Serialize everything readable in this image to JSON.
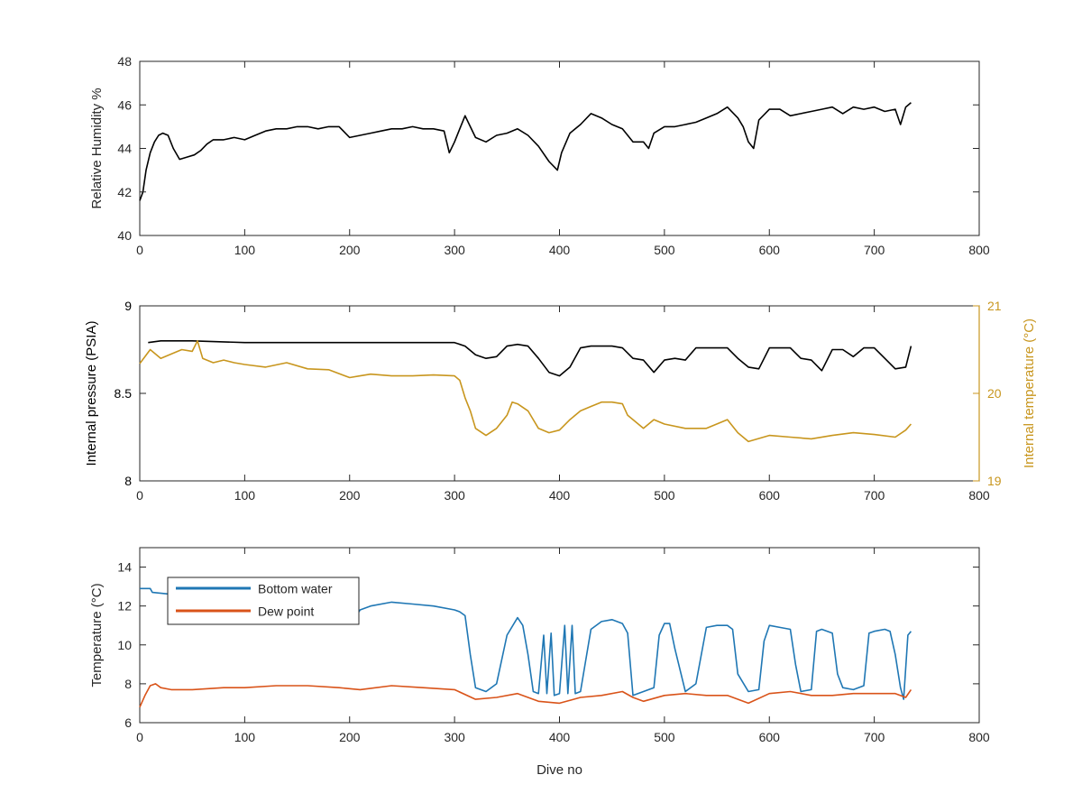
{
  "chart_data": [
    {
      "type": "line",
      "ylabel": "Relative Humidity %",
      "xlim": [
        0,
        800
      ],
      "ylim": [
        40,
        48
      ],
      "xticks": [
        0,
        100,
        200,
        300,
        400,
        500,
        600,
        700,
        800
      ],
      "yticks": [
        40,
        42,
        44,
        46,
        48
      ],
      "grid": false,
      "series": [
        {
          "color": "#000000",
          "x": [
            0,
            3,
            6,
            10,
            14,
            18,
            22,
            27,
            32,
            38,
            45,
            52,
            58,
            64,
            70,
            80,
            90,
            100,
            110,
            120,
            130,
            140,
            150,
            160,
            170,
            180,
            190,
            200,
            210,
            220,
            230,
            240,
            250,
            260,
            270,
            280,
            290,
            295,
            300,
            305,
            310,
            315,
            320,
            330,
            340,
            350,
            360,
            370,
            380,
            390,
            398,
            402,
            410,
            420,
            430,
            440,
            450,
            460,
            470,
            480,
            485,
            490,
            500,
            510,
            520,
            530,
            540,
            550,
            560,
            570,
            575,
            580,
            585,
            590,
            600,
            610,
            620,
            630,
            640,
            650,
            660,
            670,
            680,
            690,
            700,
            710,
            720,
            725,
            730,
            735
          ],
          "y": [
            41.6,
            42.0,
            43.0,
            43.8,
            44.3,
            44.6,
            44.7,
            44.6,
            44.0,
            43.5,
            43.6,
            43.7,
            43.9,
            44.2,
            44.4,
            44.4,
            44.5,
            44.4,
            44.6,
            44.8,
            44.9,
            44.9,
            45.0,
            45.0,
            44.9,
            45.0,
            45.0,
            44.5,
            44.6,
            44.7,
            44.8,
            44.9,
            44.9,
            45.0,
            44.9,
            44.9,
            44.8,
            43.8,
            44.3,
            44.9,
            45.5,
            45.0,
            44.5,
            44.3,
            44.6,
            44.7,
            44.9,
            44.6,
            44.1,
            43.4,
            43.0,
            43.8,
            44.7,
            45.1,
            45.6,
            45.4,
            45.1,
            44.9,
            44.3,
            44.3,
            44.0,
            44.7,
            45.0,
            45.0,
            45.1,
            45.2,
            45.4,
            45.6,
            45.9,
            45.4,
            45.0,
            44.3,
            44.0,
            45.3,
            45.8,
            45.8,
            45.5,
            45.6,
            45.7,
            45.8,
            45.9,
            45.6,
            45.9,
            45.8,
            45.9,
            45.7,
            45.8,
            45.1,
            45.9,
            46.1
          ]
        }
      ]
    },
    {
      "type": "line",
      "ylabel": "Internal pressure (PSIA)",
      "y2label": "Internal temperature (°C)",
      "xlim": [
        0,
        800
      ],
      "ylim": [
        8,
        9
      ],
      "y2lim": [
        19,
        21
      ],
      "xticks": [
        0,
        100,
        200,
        300,
        400,
        500,
        600,
        700,
        800
      ],
      "yticks": [
        8,
        8.5,
        9
      ],
      "y2ticks": [
        19,
        20,
        21
      ],
      "y2color": "#c8961e",
      "grid": false,
      "series": [
        {
          "axis": "left",
          "color": "#000000",
          "x": [
            8,
            20,
            50,
            100,
            150,
            200,
            250,
            300,
            310,
            320,
            330,
            340,
            350,
            360,
            370,
            380,
            390,
            400,
            410,
            420,
            430,
            440,
            450,
            460,
            470,
            480,
            490,
            500,
            510,
            520,
            530,
            540,
            550,
            560,
            570,
            580,
            590,
            600,
            610,
            620,
            630,
            640,
            650,
            660,
            670,
            680,
            690,
            700,
            710,
            720,
            730,
            735
          ],
          "y": [
            8.79,
            8.8,
            8.8,
            8.79,
            8.79,
            8.79,
            8.79,
            8.79,
            8.77,
            8.72,
            8.7,
            8.71,
            8.77,
            8.78,
            8.77,
            8.7,
            8.62,
            8.6,
            8.65,
            8.76,
            8.77,
            8.77,
            8.77,
            8.76,
            8.7,
            8.69,
            8.62,
            8.69,
            8.7,
            8.69,
            8.76,
            8.76,
            8.76,
            8.76,
            8.7,
            8.65,
            8.64,
            8.76,
            8.76,
            8.76,
            8.7,
            8.69,
            8.63,
            8.75,
            8.75,
            8.71,
            8.76,
            8.76,
            8.7,
            8.64,
            8.65,
            8.77
          ]
        },
        {
          "axis": "right",
          "color": "#c8961e",
          "x": [
            0,
            10,
            20,
            30,
            40,
            50,
            55,
            60,
            70,
            80,
            90,
            100,
            120,
            140,
            160,
            180,
            200,
            210,
            220,
            240,
            260,
            280,
            300,
            305,
            310,
            315,
            320,
            330,
            340,
            350,
            355,
            360,
            370,
            380,
            390,
            400,
            410,
            420,
            430,
            440,
            450,
            460,
            465,
            470,
            480,
            490,
            500,
            520,
            540,
            560,
            570,
            580,
            600,
            620,
            640,
            660,
            680,
            700,
            720,
            730,
            735
          ],
          "y": [
            20.34,
            20.5,
            20.4,
            20.45,
            20.5,
            20.48,
            20.6,
            20.4,
            20.35,
            20.38,
            20.35,
            20.33,
            20.3,
            20.35,
            20.28,
            20.27,
            20.18,
            20.2,
            20.22,
            20.2,
            20.2,
            20.21,
            20.2,
            20.15,
            19.95,
            19.8,
            19.6,
            19.52,
            19.6,
            19.75,
            19.9,
            19.88,
            19.8,
            19.6,
            19.55,
            19.58,
            19.7,
            19.8,
            19.85,
            19.9,
            19.9,
            19.88,
            19.75,
            19.7,
            19.6,
            19.7,
            19.65,
            19.6,
            19.6,
            19.7,
            19.55,
            19.45,
            19.52,
            19.5,
            19.48,
            19.52,
            19.55,
            19.53,
            19.5,
            19.58,
            19.65
          ]
        }
      ]
    },
    {
      "type": "line",
      "xlabel": "Dive no",
      "ylabel": "Temperature (°C)",
      "xlim": [
        0,
        800
      ],
      "ylim": [
        6,
        15
      ],
      "xticks": [
        0,
        100,
        200,
        300,
        400,
        500,
        600,
        700,
        800
      ],
      "yticks": [
        6,
        8,
        10,
        12,
        14
      ],
      "legend_position": "top-left",
      "grid": false,
      "series": [
        {
          "name": "Bottom water",
          "color": "#1f77b4",
          "x": [
            0,
            10,
            12,
            30,
            60,
            100,
            150,
            200,
            205,
            210,
            220,
            240,
            260,
            280,
            300,
            305,
            310,
            315,
            320,
            330,
            340,
            350,
            360,
            365,
            370,
            375,
            380,
            385,
            388,
            392,
            395,
            400,
            405,
            408,
            412,
            415,
            420,
            430,
            440,
            450,
            460,
            465,
            470,
            480,
            490,
            495,
            500,
            505,
            510,
            520,
            530,
            540,
            550,
            560,
            565,
            570,
            580,
            590,
            595,
            600,
            610,
            620,
            625,
            630,
            640,
            645,
            650,
            660,
            665,
            670,
            680,
            690,
            695,
            700,
            710,
            715,
            720,
            725,
            728,
            732,
            735
          ],
          "y": [
            12.9,
            12.9,
            12.7,
            12.6,
            12.4,
            12.3,
            12.0,
            11.2,
            11.4,
            11.8,
            12.0,
            12.2,
            12.1,
            12.0,
            11.8,
            11.7,
            11.5,
            9.5,
            7.8,
            7.6,
            8.0,
            10.5,
            11.4,
            11.0,
            9.5,
            7.6,
            7.5,
            10.5,
            7.5,
            10.6,
            7.4,
            7.5,
            11.0,
            7.5,
            11.0,
            7.5,
            7.6,
            10.8,
            11.2,
            11.3,
            11.1,
            10.6,
            7.4,
            7.6,
            7.8,
            10.5,
            11.1,
            11.1,
            9.8,
            7.6,
            8.0,
            10.9,
            11.0,
            11.0,
            10.8,
            8.5,
            7.6,
            7.7,
            10.2,
            11.0,
            10.9,
            10.8,
            9.0,
            7.6,
            7.7,
            10.7,
            10.8,
            10.6,
            8.5,
            7.8,
            7.7,
            7.9,
            10.6,
            10.7,
            10.8,
            10.7,
            9.5,
            7.8,
            7.2,
            10.5,
            10.7
          ]
        },
        {
          "name": "Dew point",
          "color": "#d95319",
          "x": [
            0,
            5,
            10,
            15,
            20,
            30,
            50,
            80,
            100,
            130,
            160,
            190,
            210,
            240,
            270,
            300,
            320,
            340,
            360,
            380,
            400,
            420,
            440,
            460,
            470,
            480,
            500,
            520,
            540,
            560,
            580,
            600,
            620,
            640,
            660,
            680,
            700,
            720,
            730,
            735
          ],
          "y": [
            6.8,
            7.4,
            7.9,
            8.0,
            7.8,
            7.7,
            7.7,
            7.8,
            7.8,
            7.9,
            7.9,
            7.8,
            7.7,
            7.9,
            7.8,
            7.7,
            7.2,
            7.3,
            7.5,
            7.1,
            7.0,
            7.3,
            7.4,
            7.6,
            7.3,
            7.1,
            7.4,
            7.5,
            7.4,
            7.4,
            7.0,
            7.5,
            7.6,
            7.4,
            7.4,
            7.5,
            7.5,
            7.5,
            7.3,
            7.7
          ]
        }
      ]
    }
  ]
}
